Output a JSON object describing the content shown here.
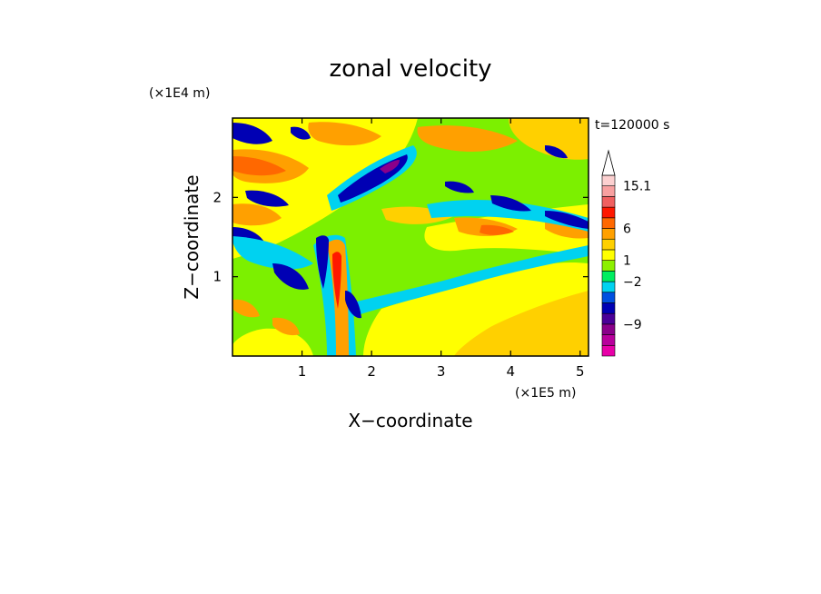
{
  "chart_data": {
    "type": "heatmap",
    "title": "zonal velocity",
    "xlabel": "X−coordinate",
    "ylabel": "Z−coordinate",
    "x_multiplier": "(×1E5 m)",
    "y_multiplier": "(×1E4 m)",
    "time_label": "t=120000 s",
    "xlim": [
      0,
      5.12
    ],
    "ylim": [
      0,
      3.0
    ],
    "x_ticks": [
      1,
      2,
      3,
      4,
      5
    ],
    "y_ticks": [
      1,
      2
    ],
    "x_tick_labels": [
      "1",
      "2",
      "3",
      "4",
      "5"
    ],
    "y_tick_labels": [
      "1",
      "2"
    ],
    "colorbar": {
      "levels_from_bottom": [
        {
          "color": "#e800a8"
        },
        {
          "color": "#b8009c"
        },
        {
          "color": "#8a008a"
        },
        {
          "color": "#4a0098"
        },
        {
          "color": "#0000b4"
        },
        {
          "color": "#0050e0"
        },
        {
          "color": "#00d2f0"
        },
        {
          "color": "#00ee60"
        },
        {
          "color": "#8cf000"
        },
        {
          "color": "#ffff00"
        },
        {
          "color": "#ffd000"
        },
        {
          "color": "#ffa000"
        },
        {
          "color": "#ff6800"
        },
        {
          "color": "#ff1800"
        },
        {
          "color": "#f06060"
        },
        {
          "color": "#f8a0a0"
        },
        {
          "color": "#fcd0d0"
        }
      ],
      "labels": [
        {
          "text": "−9",
          "level_boundary": 3
        },
        {
          "text": "−2",
          "level_boundary": 7
        },
        {
          "text": "1",
          "level_boundary": 9
        },
        {
          "text": "6",
          "level_boundary": 12
        },
        {
          "text": "15.1",
          "level_boundary": 16
        }
      ],
      "extend": "max"
    },
    "colors": {
      "background": "#ffffff",
      "default_fill": "#7cf000"
    }
  }
}
